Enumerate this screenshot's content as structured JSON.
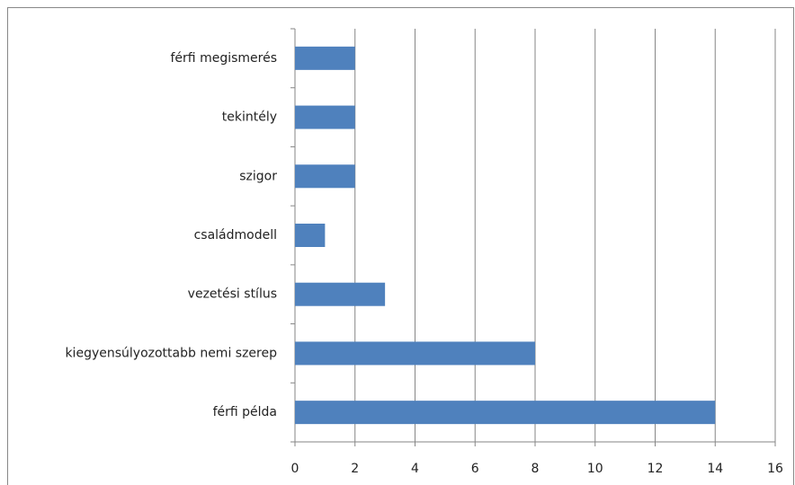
{
  "chart_data": {
    "type": "barh",
    "categories": [
      "férfi megismerés",
      "tekintély",
      "szigor",
      "családmodell",
      "vezetési stílus",
      "kiegyensúlyozottabb nemi szerep",
      "férfi példa"
    ],
    "values": [
      2,
      2,
      2,
      1,
      3,
      8,
      14
    ],
    "color": "#4f81bd",
    "xlim": [
      0,
      16
    ],
    "xticks": [
      0,
      2,
      4,
      6,
      8,
      10,
      12,
      14,
      16
    ],
    "grid": true
  }
}
